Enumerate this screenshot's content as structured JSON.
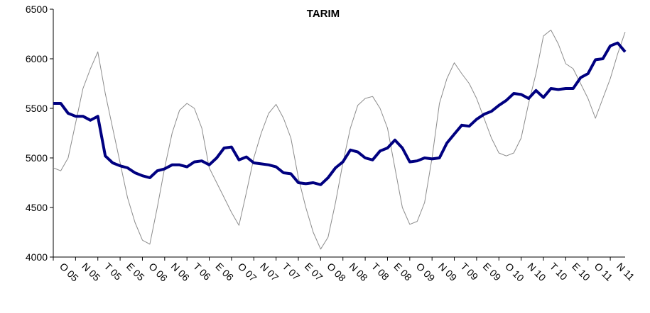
{
  "chart_data": {
    "type": "line",
    "title": "TARIM",
    "categories": [
      "O 05",
      null,
      null,
      "N 05",
      null,
      null,
      "T 05",
      null,
      null,
      "E 05",
      null,
      null,
      "O 06",
      null,
      null,
      "N 06",
      null,
      null,
      "T 06",
      null,
      null,
      "E 06",
      null,
      null,
      "O 07",
      null,
      null,
      "N 07",
      null,
      null,
      "T 07",
      null,
      null,
      "E 07",
      null,
      null,
      "O 08",
      null,
      null,
      "N 08",
      null,
      null,
      "T 08",
      null,
      null,
      "E 08",
      null,
      null,
      "O 09",
      null,
      null,
      "N 09",
      null,
      null,
      "T 09",
      null,
      null,
      "E 09",
      null,
      null,
      "O 10",
      null,
      null,
      "N 10",
      null,
      null,
      "T 10",
      null,
      null,
      "E 10",
      null,
      null,
      "O 11",
      null,
      null,
      "N 11",
      null,
      null
    ],
    "series": [
      {
        "color": "#8c8c8c",
        "width": 1,
        "values": [
          4900,
          4870,
          5000,
          5350,
          5700,
          5900,
          6070,
          5650,
          5300,
          4950,
          4600,
          4350,
          4170,
          4130,
          4500,
          4900,
          5250,
          5480,
          5550,
          5500,
          5300,
          4900,
          4750,
          4600,
          4450,
          4320,
          4650,
          5000,
          5250,
          5450,
          5540,
          5400,
          5200,
          4800,
          4500,
          4250,
          4080,
          4200,
          4550,
          4950,
          5300,
          5530,
          5600,
          5620,
          5500,
          5300,
          4900,
          4500,
          4330,
          4360,
          4550,
          5000,
          5550,
          5800,
          5960,
          5850,
          5750,
          5600,
          5400,
          5200,
          5050,
          5020,
          5050,
          5200,
          5550,
          5850,
          6230,
          6290,
          6150,
          5950,
          5900,
          5750,
          5600,
          5400,
          5600,
          5800,
          6050,
          6270
        ]
      },
      {
        "color": "#000080",
        "width": 4,
        "values": [
          5550,
          5550,
          5450,
          5420,
          5420,
          5380,
          5420,
          5020,
          4950,
          4920,
          4900,
          4850,
          4820,
          4800,
          4870,
          4890,
          4930,
          4930,
          4910,
          4960,
          4970,
          4930,
          5000,
          5100,
          5110,
          4980,
          5010,
          4950,
          4940,
          4930,
          4910,
          4850,
          4840,
          4750,
          4740,
          4750,
          4730,
          4800,
          4900,
          4960,
          5080,
          5060,
          5000,
          4980,
          5070,
          5100,
          5180,
          5100,
          4960,
          4970,
          5000,
          4990,
          5000,
          5150,
          5240,
          5330,
          5320,
          5390,
          5440,
          5470,
          5530,
          5580,
          5650,
          5640,
          5600,
          5680,
          5610,
          5700,
          5690,
          5700,
          5700,
          5810,
          5850,
          5990,
          6000,
          6130,
          6160,
          6070
        ]
      }
    ],
    "ylim": [
      4000,
      6500
    ],
    "yticks": [
      4000,
      4500,
      5000,
      5500,
      6000,
      6500
    ],
    "grid": false
  }
}
